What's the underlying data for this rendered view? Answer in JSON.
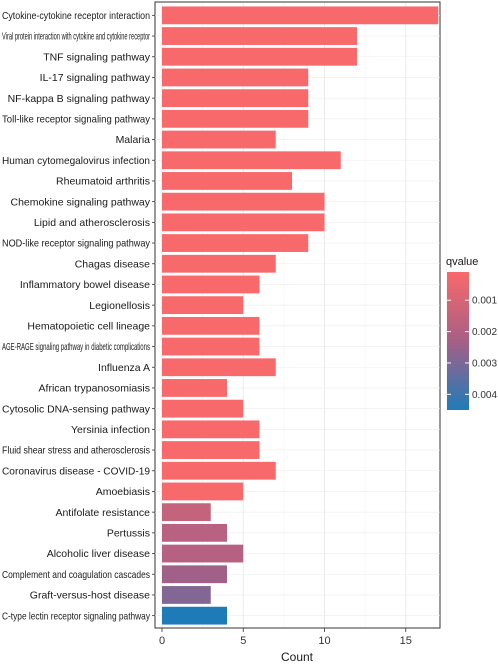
{
  "chart_data": {
    "type": "bar",
    "orientation": "horizontal",
    "categories": [
      "Cytokine-cytokine receptor interaction",
      "Viral protein interaction with cytokine and cytokine receptor",
      "TNF signaling pathway",
      "IL-17 signaling pathway",
      "NF-kappa B signaling pathway",
      "Toll-like receptor signaling pathway",
      "Malaria",
      "Human cytomegalovirus infection",
      "Rheumatoid arthritis",
      "Chemokine signaling pathway",
      "Lipid and atherosclerosis",
      "NOD-like receptor signaling pathway",
      "Chagas disease",
      "Inflammatory bowel disease",
      "Legionellosis",
      "Hematopoietic cell lineage",
      "AGE-RAGE signaling pathway in diabetic complications",
      "Influenza A",
      "African trypanosomiasis",
      "Cytosolic DNA-sensing pathway",
      "Yersinia infection",
      "Fluid shear stress and atherosclerosis",
      "Coronavirus disease - COVID-19",
      "Amoebiasis",
      "Antifolate resistance",
      "Pertussis",
      "Alcoholic liver disease",
      "Complement and coagulation cascades",
      "Graft-versus-host disease",
      "C-type lectin receptor signaling pathway"
    ],
    "values": [
      17,
      12,
      12,
      9,
      9,
      9,
      7,
      11,
      8,
      10,
      10,
      9,
      7,
      6,
      5,
      6,
      6,
      7,
      4,
      5,
      6,
      6,
      7,
      5,
      3,
      4,
      5,
      4,
      3,
      4
    ],
    "qvalues": [
      0.0001,
      0.0001,
      0.0001,
      0.0001,
      0.0001,
      0.0001,
      0.0001,
      0.0001,
      0.0001,
      0.0001,
      0.0001,
      0.0001,
      0.0001,
      0.0001,
      0.0001,
      0.0001,
      0.0001,
      0.0001,
      0.0001,
      0.0001,
      0.0001,
      0.0001,
      0.0001,
      0.0001,
      0.0015,
      0.0018,
      0.0019,
      0.0024,
      0.0029,
      0.0045
    ],
    "xlabel": "Count",
    "ylabel": "",
    "xlim": [
      0,
      19
    ],
    "xticks": [
      0,
      5,
      10,
      15
    ],
    "grid": true,
    "legend": {
      "title": "qvalue",
      "position": "right",
      "ticks": [
        0.001,
        0.002,
        0.003,
        0.004
      ],
      "range": [
        0.0001,
        0.0045
      ],
      "color_low": "#f8696b",
      "color_mid": "#a75f86",
      "color_high": "#1f7bb8"
    }
  }
}
